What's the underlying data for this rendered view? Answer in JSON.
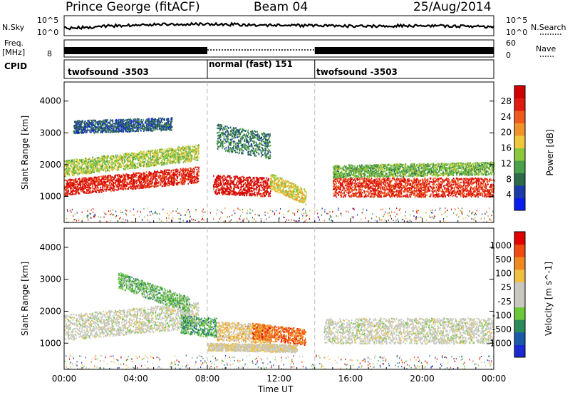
{
  "header": {
    "station": "Prince George (fitACF)",
    "beam": "Beam 04",
    "date": "25/Aug/2014"
  },
  "strips": {
    "nsky_label": "N.Sky",
    "nsky_top": "10^5",
    "nsky_bottom": "10^0",
    "nsearch_label": "N.Search",
    "nsearch_top": "10^5",
    "nsearch_bottom": "10^0",
    "freq_label": "Freq.",
    "freq_unit": "[MHz]",
    "freq_value": "8",
    "nave_label": "Nave",
    "nave_top": "60",
    "nave_bottom": "0",
    "cpid_label": "CPID"
  },
  "cpid_segments": [
    {
      "label": "twofsound -3503",
      "start": 0,
      "end": 8
    },
    {
      "label": "normal (fast) 151",
      "start": 8,
      "end": 14
    },
    {
      "label": "twofsound -3503",
      "start": 14,
      "end": 24
    }
  ],
  "power_panel": {
    "ylabel": "Slant Range [km]",
    "colorbar_label": "Power [dB]",
    "colorbar_ticks": [
      "28",
      "24",
      "20",
      "16",
      "12",
      "8",
      "4"
    ],
    "colors": [
      "#0a1df0",
      "#1c3aa8",
      "#2d6a4a",
      "#4ba04a",
      "#8cc83c",
      "#f0c83c",
      "#f0942a",
      "#f05a1a",
      "#e01a10",
      "#d00000"
    ]
  },
  "velocity_panel": {
    "ylabel": "Slant Range [km]",
    "colorbar_label": "Velocity [m s^-1]",
    "colorbar_ticks": [
      "1000",
      "500",
      "100",
      "25",
      "-25",
      "-100",
      "-500",
      "-1000"
    ],
    "colors": [
      "#1a2ad0",
      "#1a5aa8",
      "#2a8a5a",
      "#6ac83a",
      "#c8c8c0",
      "#c8c8c0",
      "#f0c040",
      "#f08a20",
      "#f04a10",
      "#e00000"
    ]
  },
  "x_axis": {
    "label": "Time UT",
    "ticks": [
      "00:00",
      "04:00",
      "08:00",
      "12:00",
      "16:00",
      "20:00",
      "00:00"
    ]
  },
  "chart_data": {
    "type": "heatmap",
    "title": "Prince George (fitACF)",
    "subtitle": "Beam 04 25/Aug/2014",
    "xlabel": "Time UT",
    "ylabel": "Slant Range [km]",
    "xlim": [
      0,
      24
    ],
    "ylim": [
      180,
      4600
    ],
    "yticks": [
      1000,
      2000,
      3000,
      4000
    ],
    "xticks": [
      "00:00",
      "04:00",
      "08:00",
      "12:00",
      "16:00",
      "20:00",
      "00:00"
    ],
    "panels": [
      {
        "name": "Power [dB]",
        "color_range": [
          0,
          30
        ],
        "regions": [
          {
            "t_start": 0,
            "t_end": 7.5,
            "range_center_km": 1300,
            "range_center_end_km": 1700,
            "half_width_km": 250,
            "value": 26
          },
          {
            "t_start": 0,
            "t_end": 7.5,
            "range_center_km": 1900,
            "range_center_end_km": 2400,
            "half_width_km": 250,
            "value": 14
          },
          {
            "t_start": 8.3,
            "t_end": 11.5,
            "range_center_km": 1400,
            "range_center_end_km": 1300,
            "half_width_km": 300,
            "value": 27
          },
          {
            "t_start": 11.5,
            "t_end": 13.5,
            "range_center_km": 1500,
            "range_center_end_km": 1000,
            "half_width_km": 250,
            "value": 16
          },
          {
            "t_start": 15,
            "t_end": 24,
            "range_center_km": 1300,
            "range_center_end_km": 1300,
            "half_width_km": 300,
            "value": 25
          },
          {
            "t_start": 15,
            "t_end": 24,
            "range_center_km": 1800,
            "range_center_end_km": 1900,
            "half_width_km": 200,
            "value": 12
          },
          {
            "t_start": 0.5,
            "t_end": 6,
            "range_center_km": 3200,
            "range_center_end_km": 3300,
            "half_width_km": 200,
            "value": 6
          },
          {
            "t_start": 8.5,
            "t_end": 11.5,
            "range_center_km": 2900,
            "range_center_end_km": 2600,
            "half_width_km": 400,
            "value": 8
          }
        ]
      },
      {
        "name": "Velocity [m s-1]",
        "color_range": [
          -1000,
          1000
        ],
        "regions": [
          {
            "t_start": 0,
            "t_end": 7.5,
            "range_center_km": 1500,
            "range_center_end_km": 1900,
            "half_width_km": 400,
            "value": 0
          },
          {
            "t_start": 6.5,
            "t_end": 8.5,
            "range_center_km": 1600,
            "range_center_end_km": 1500,
            "half_width_km": 300,
            "value": -400
          },
          {
            "t_start": 8.5,
            "t_end": 11.5,
            "range_center_km": 1400,
            "range_center_end_km": 1300,
            "half_width_km": 300,
            "value": 250
          },
          {
            "t_start": 10.5,
            "t_end": 13.5,
            "range_center_km": 1400,
            "range_center_end_km": 1200,
            "half_width_km": 250,
            "value": 600
          },
          {
            "t_start": 8,
            "t_end": 13,
            "range_center_km": 900,
            "range_center_end_km": 850,
            "half_width_km": 120,
            "value": 100
          },
          {
            "t_start": 14.5,
            "t_end": 24,
            "range_center_km": 1400,
            "range_center_end_km": 1400,
            "half_width_km": 400,
            "value": 0
          },
          {
            "t_start": 3,
            "t_end": 7,
            "range_center_km": 3000,
            "range_center_end_km": 2200,
            "half_width_km": 250,
            "value": -300
          }
        ]
      }
    ]
  }
}
